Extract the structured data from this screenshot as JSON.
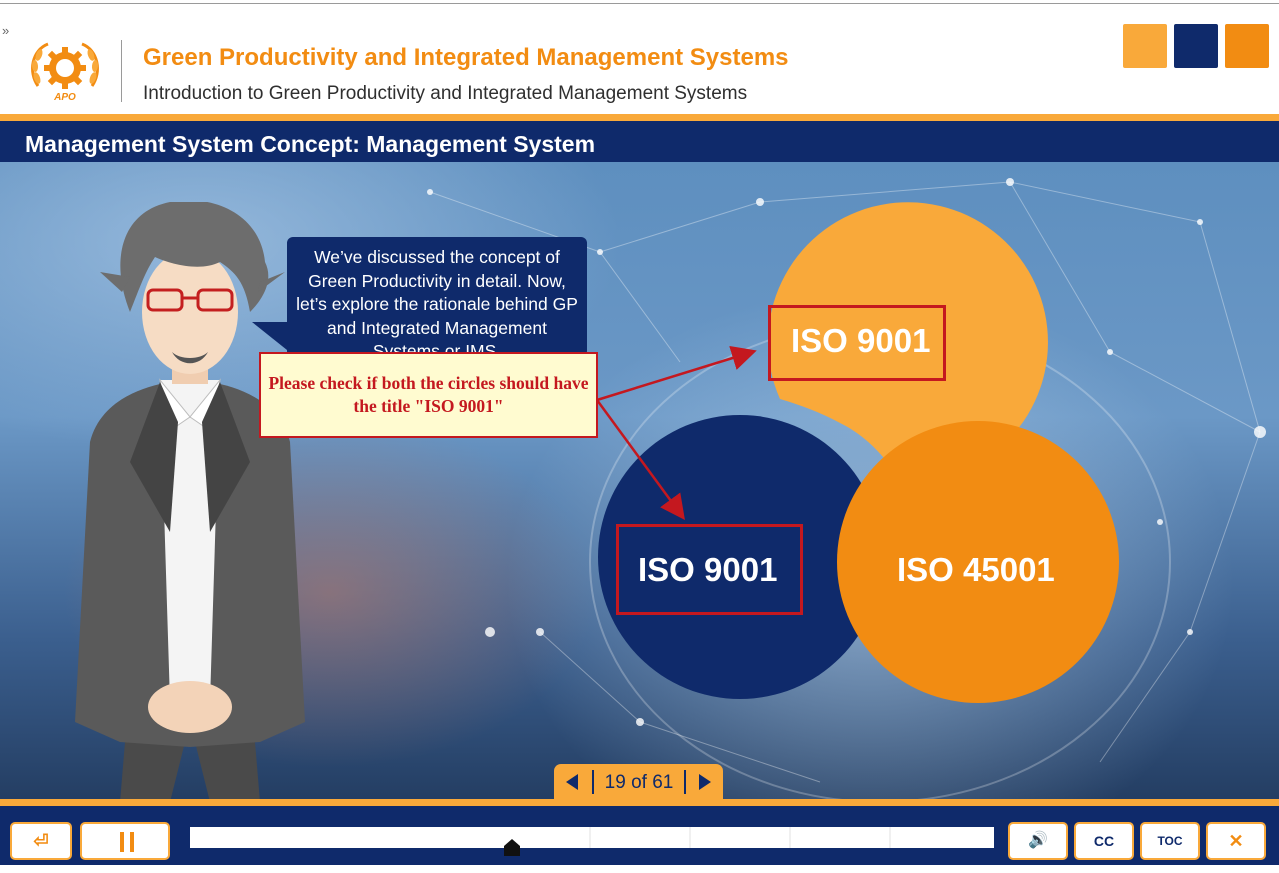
{
  "header": {
    "expand_glyph": "»",
    "logo_text": "APO",
    "course_title": "Green Productivity and Integrated Management Systems",
    "course_subtitle": "Introduction to Green Productivity and Integrated Management Systems",
    "swatches": [
      "#f9a93a",
      "#0f2a6b",
      "#f28c12"
    ]
  },
  "slide": {
    "title": "Management System Concept: Management System",
    "bubble_text": "We’ve discussed the concept of Green Productivity in detail. Now, let’s explore the rationale behind GP and Integrated Management Systems or IMS.",
    "review_note": "Please check if both the circles should have the title \"ISO 9001\"",
    "circles": {
      "top": {
        "label": "ISO 9001",
        "color": "#f9a93a"
      },
      "left": {
        "label": "ISO 9001",
        "color": "#0f2a6b"
      },
      "right": {
        "label": "ISO 45001",
        "color": "#f28c12"
      }
    },
    "highlight_color": "#c4181f"
  },
  "navigation": {
    "counter_text": "19 of 61",
    "current_slide": 19,
    "total_slides": 61
  },
  "player": {
    "exit_icon": "⏎",
    "pause_icon": "pause-icon",
    "progress_fraction": 0.4,
    "volume_icon": "🔊",
    "cc_label": "CC",
    "toc_label": "TOC",
    "close_label": "✕"
  },
  "colors": {
    "navy": "#0f2a6b",
    "orange": "#f28c12",
    "light_orange": "#f9a93a"
  }
}
